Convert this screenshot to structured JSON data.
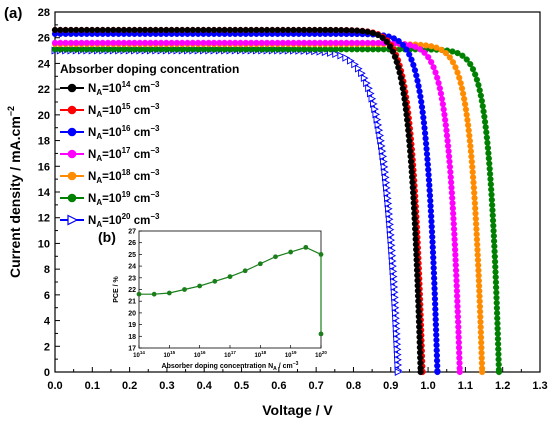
{
  "chart_data": [
    {
      "panel_label": "(a)",
      "type": "line",
      "xlabel": "Voltage / V",
      "ylabel": "Current density / mA.cm",
      "ylabel_sup": "−2",
      "xlim": [
        0.0,
        1.3
      ],
      "ylim": [
        0,
        28
      ],
      "x_ticks": [
        "0.0",
        "0.1",
        "0.2",
        "0.3",
        "0.4",
        "0.5",
        "0.6",
        "0.7",
        "0.8",
        "0.9",
        "1.0",
        "1.1",
        "1.2",
        "1.3"
      ],
      "y_ticks": [
        "0",
        "2",
        "4",
        "6",
        "8",
        "10",
        "12",
        "14",
        "16",
        "18",
        "20",
        "22",
        "24",
        "26",
        "28"
      ],
      "legend_title": "Absorber doping concentration",
      "legend_placement": "upper-left",
      "series": [
        {
          "label_base": "N",
          "label_sub": "A",
          "label_eq": "=10",
          "label_exp": "14",
          "label_unit": " cm",
          "label_unit_exp": "−3",
          "color": "#000000",
          "marker": "circle",
          "jsc": 26.6,
          "voc": 0.98,
          "knee": 0.027
        },
        {
          "label_base": "N",
          "label_sub": "A",
          "label_eq": "=10",
          "label_exp": "15",
          "label_unit": " cm",
          "label_unit_exp": "−3",
          "color": "#ff0000",
          "marker": "circle",
          "jsc": 26.6,
          "voc": 0.985,
          "knee": 0.027
        },
        {
          "label_base": "N",
          "label_sub": "A",
          "label_eq": "=10",
          "label_exp": "16",
          "label_unit": " cm",
          "label_unit_exp": "−3",
          "color": "#0000ff",
          "marker": "circle",
          "jsc": 26.3,
          "voc": 1.025,
          "knee": 0.027
        },
        {
          "label_base": "N",
          "label_sub": "A",
          "label_eq": "=10",
          "label_exp": "17",
          "label_unit": " cm",
          "label_unit_exp": "−3",
          "color": "#ff00ff",
          "marker": "circle",
          "jsc": 25.6,
          "voc": 1.085,
          "knee": 0.027
        },
        {
          "label_base": "N",
          "label_sub": "A",
          "label_eq": "=10",
          "label_exp": "18",
          "label_unit": " cm",
          "label_unit_exp": "−3",
          "color": "#ff8c00",
          "marker": "circle",
          "jsc": 25.5,
          "voc": 1.145,
          "knee": 0.027
        },
        {
          "label_base": "N",
          "label_sub": "A",
          "label_eq": "=10",
          "label_exp": "19",
          "label_unit": " cm",
          "label_unit_exp": "−3",
          "color": "#008000",
          "marker": "circle",
          "jsc": 25.1,
          "voc": 1.19,
          "knee": 0.025
        },
        {
          "label_base": "N",
          "label_sub": "A",
          "label_eq": "=10",
          "label_exp": "20",
          "label_unit": " cm",
          "label_unit_exp": "−3",
          "color": "#0000ff",
          "marker": "triangle-right-open",
          "jsc": 25.0,
          "voc": 0.92,
          "knee": 0.037
        }
      ]
    },
    {
      "panel_label": "(b)",
      "type": "line",
      "xlabel": "Absorber doping concentration N",
      "xlabel_sub": "A",
      "xlabel_unit": " / cm",
      "xlabel_unit_exp": "−3",
      "ylabel": "PCE / %",
      "ylim": [
        17,
        27
      ],
      "y_ticks": [
        "17",
        "18",
        "19",
        "20",
        "21",
        "22",
        "23",
        "24",
        "25",
        "26",
        "27"
      ],
      "x_ticks": [
        {
          "base": "10",
          "exp": "14"
        },
        {
          "base": "10",
          "exp": "15"
        },
        {
          "base": "10",
          "exp": "16"
        },
        {
          "base": "10",
          "exp": "17"
        },
        {
          "base": "10",
          "exp": "18"
        },
        {
          "base": "10",
          "exp": "19"
        },
        {
          "base": "10",
          "exp": "20"
        }
      ],
      "x_log": [
        14,
        20
      ],
      "color": "#1a7f1a",
      "points": [
        {
          "x": 14.0,
          "y": 21.6
        },
        {
          "x": 14.5,
          "y": 21.6
        },
        {
          "x": 15.0,
          "y": 21.7
        },
        {
          "x": 15.5,
          "y": 22.0
        },
        {
          "x": 16.0,
          "y": 22.3
        },
        {
          "x": 16.5,
          "y": 22.7
        },
        {
          "x": 17.0,
          "y": 23.1
        },
        {
          "x": 17.5,
          "y": 23.6
        },
        {
          "x": 18.0,
          "y": 24.2
        },
        {
          "x": 18.5,
          "y": 24.8
        },
        {
          "x": 19.0,
          "y": 25.2
        },
        {
          "x": 19.5,
          "y": 25.6
        },
        {
          "x": 20.0,
          "y": 25.0
        },
        {
          "x": 20.0,
          "y": 18.2
        }
      ]
    }
  ]
}
